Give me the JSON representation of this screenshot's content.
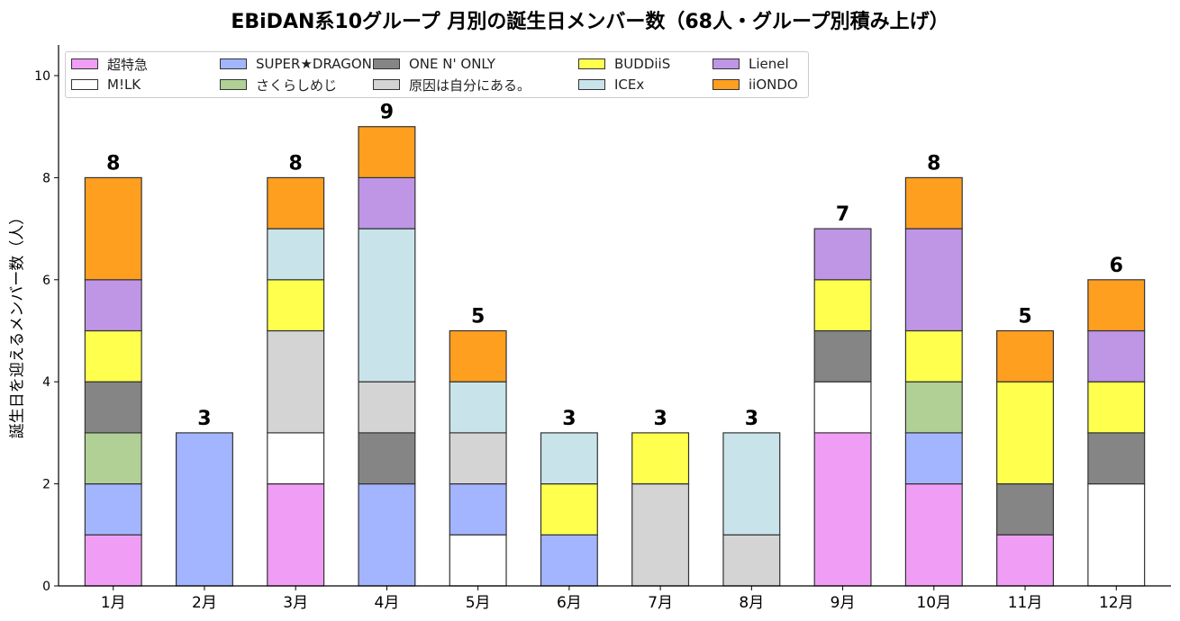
{
  "chart_data": {
    "type": "bar",
    "stacked": true,
    "title": "EBiDAN系10グループ 月別の誕生日メンバー数（68人・グループ別積み上げ）",
    "xlabel": "",
    "ylabel": "誕生日を迎えるメンバー数（人）",
    "ylim": [
      0,
      10.6
    ],
    "yticks": [
      0,
      2,
      4,
      6,
      8,
      10
    ],
    "categories": [
      "1月",
      "2月",
      "3月",
      "4月",
      "5月",
      "6月",
      "7月",
      "8月",
      "9月",
      "10月",
      "11月",
      "12月"
    ],
    "totals": [
      8,
      3,
      8,
      9,
      5,
      3,
      3,
      3,
      7,
      8,
      5,
      6
    ],
    "grid": false,
    "legend_position": "top-left",
    "series": [
      {
        "name": "超特急",
        "color": "#f09ef5",
        "values": [
          1,
          0,
          2,
          0,
          0,
          0,
          0,
          0,
          3,
          2,
          1,
          0
        ]
      },
      {
        "name": "M!LK",
        "color": "#ffffff",
        "values": [
          0,
          0,
          1,
          0,
          1,
          0,
          0,
          0,
          1,
          0,
          0,
          2
        ]
      },
      {
        "name": "SUPER★DRAGON",
        "color": "#a3b5ff",
        "values": [
          1,
          3,
          0,
          2,
          1,
          1,
          0,
          0,
          0,
          1,
          0,
          0
        ]
      },
      {
        "name": "さくらしめじ",
        "color": "#b0d095",
        "values": [
          1,
          0,
          0,
          0,
          0,
          0,
          0,
          0,
          0,
          1,
          0,
          0
        ]
      },
      {
        "name": "ONE N' ONLY",
        "color": "#858585",
        "values": [
          1,
          0,
          0,
          1,
          0,
          0,
          0,
          0,
          1,
          0,
          1,
          1
        ]
      },
      {
        "name": "原因は自分にある。",
        "color": "#d4d4d4",
        "values": [
          0,
          0,
          2,
          1,
          1,
          0,
          2,
          1,
          0,
          0,
          0,
          0
        ]
      },
      {
        "name": "BUDDiiS",
        "color": "#ffff4d",
        "values": [
          1,
          0,
          1,
          0,
          0,
          1,
          1,
          0,
          1,
          1,
          2,
          1
        ]
      },
      {
        "name": "ICEx",
        "color": "#c8e4ea",
        "values": [
          0,
          0,
          1,
          3,
          1,
          1,
          0,
          2,
          0,
          0,
          0,
          0
        ]
      },
      {
        "name": "Lienel",
        "color": "#bf95e6",
        "values": [
          1,
          0,
          0,
          1,
          0,
          0,
          0,
          0,
          1,
          2,
          0,
          1
        ]
      },
      {
        "name": "iiONDO",
        "color": "#ff9f20",
        "values": [
          2,
          0,
          1,
          1,
          1,
          0,
          0,
          0,
          0,
          1,
          1,
          1
        ]
      }
    ]
  }
}
